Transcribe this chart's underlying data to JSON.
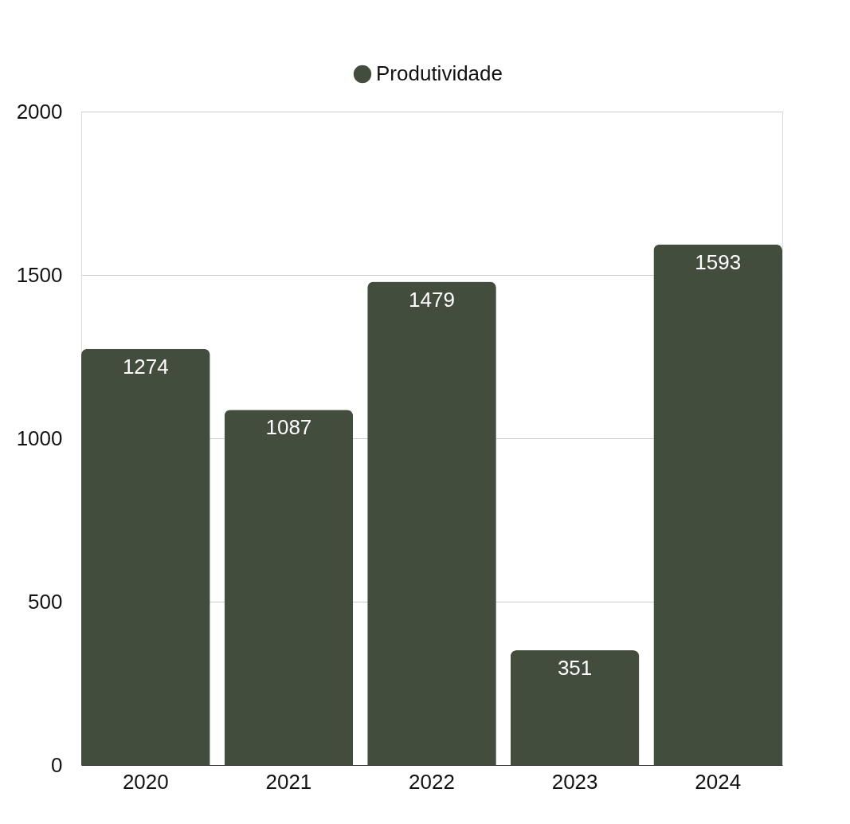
{
  "chart_data": {
    "type": "bar",
    "categories": [
      "2020",
      "2021",
      "2022",
      "2023",
      "2024"
    ],
    "series": [
      {
        "name": "Produtividade",
        "color": "#424d3d",
        "values": [
          1274,
          1087,
          1479,
          351,
          1593
        ]
      }
    ],
    "ylim": [
      0,
      2000
    ],
    "yticks": [
      0,
      500,
      1000,
      1500,
      2000
    ],
    "grid": "y",
    "legend": "top",
    "data_labels": true
  }
}
